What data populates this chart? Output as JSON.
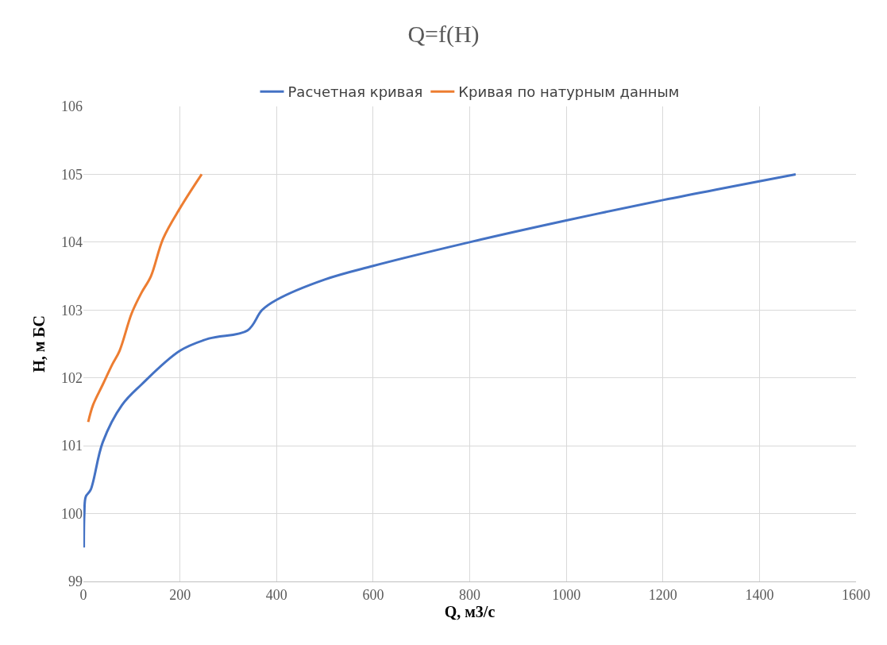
{
  "chart_data": {
    "type": "line",
    "title": "Q=f(H)",
    "xlabel": "Q, м3/с",
    "ylabel": "H, м БС",
    "xlim": [
      0,
      1600
    ],
    "xticks": [
      0,
      200,
      400,
      600,
      800,
      1000,
      1200,
      1400,
      1600
    ],
    "ylim": [
      99,
      106
    ],
    "yticks": [
      99,
      100,
      101,
      102,
      103,
      104,
      105,
      106
    ],
    "grid": true,
    "legend": "top",
    "marker": "none",
    "line_style": "solid",
    "series": [
      {
        "name": "Расчетная кривая",
        "color": "#4472c4",
        "x": [
          1,
          2,
          5,
          15,
          40,
          80,
          120,
          200,
          260,
          340,
          370,
          400,
          500,
          600,
          800,
          1000,
          1200,
          1475
        ],
        "values": [
          99.5,
          100.0,
          100.25,
          100.35,
          101.05,
          101.6,
          101.9,
          102.4,
          102.58,
          102.7,
          103.0,
          103.15,
          103.45,
          103.65,
          104.0,
          104.32,
          104.62,
          105.0
        ]
      },
      {
        "name": "Кривая по натурным данным",
        "color": "#ed7d31",
        "x": [
          10,
          20,
          40,
          60,
          75,
          100,
          120,
          140,
          165,
          200,
          245
        ],
        "values": [
          101.35,
          101.6,
          101.9,
          102.2,
          102.4,
          102.95,
          103.25,
          103.5,
          104.05,
          104.5,
          105.0
        ]
      }
    ]
  }
}
